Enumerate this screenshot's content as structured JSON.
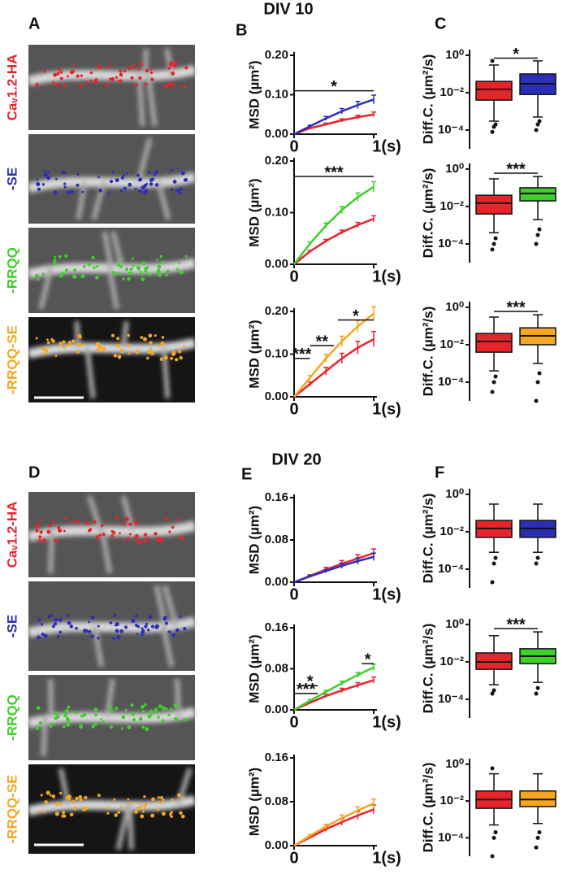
{
  "figure": {
    "titles": [
      "DIV 10",
      "DIV 20"
    ],
    "panel_labels": [
      "A",
      "B",
      "C",
      "D",
      "E",
      "F"
    ],
    "images": [
      {
        "label": "Caᵥ1.2-HA",
        "color": "#e8242a"
      },
      {
        "label": "-SE",
        "color": "#2b2fb8"
      },
      {
        "label": "-RRQQ",
        "color": "#3ecf2b"
      },
      {
        "label": "-RRQQ-SE",
        "color": "#f5a623"
      },
      {
        "label": "Caᵥ1.2-HA",
        "color": "#e8242a"
      },
      {
        "label": "-SE",
        "color": "#2b2fb8"
      },
      {
        "label": "-RRQQ",
        "color": "#3ecf2b"
      },
      {
        "label": "-RRQQ-SE",
        "color": "#f5a623"
      }
    ]
  },
  "chart_data": [
    {
      "type": "line",
      "ylabel": "MSD (µm²)",
      "x": [
        0,
        0.2,
        0.4,
        0.6,
        0.8,
        1
      ],
      "xlim": [
        0,
        1
      ],
      "xticks": [
        0,
        {
          "value": 1,
          "label": "1(s)"
        }
      ],
      "ylim": [
        0,
        0.2
      ],
      "yticks": [
        {
          "value": 0,
          "label": "0.00"
        },
        {
          "value": 0.1,
          "label": "0.10"
        },
        {
          "value": 0.2,
          "label": "0.20"
        }
      ],
      "series": [
        {
          "color": "#e8242a",
          "values": [
            0,
            0.015,
            0.025,
            0.035,
            0.043,
            0.05
          ],
          "errors": [
            0,
            0.002,
            0.003,
            0.004,
            0.005,
            0.006
          ]
        },
        {
          "color": "#2b2fb8",
          "values": [
            0,
            0.02,
            0.04,
            0.058,
            0.074,
            0.088
          ],
          "errors": [
            0,
            0.003,
            0.005,
            0.007,
            0.009,
            0.011
          ]
        }
      ],
      "annotations": [
        {
          "text": "*",
          "y": 0.11,
          "x": [
            0,
            1
          ]
        }
      ]
    },
    {
      "type": "line",
      "ylabel": "MSD (µm²)",
      "x": [
        0,
        0.2,
        0.4,
        0.6,
        0.8,
        1
      ],
      "xlim": [
        0,
        1
      ],
      "xticks": [
        0,
        {
          "value": 1,
          "label": "1(s)"
        }
      ],
      "ylim": [
        0,
        0.2
      ],
      "yticks": [
        {
          "value": 0,
          "label": "0.00"
        },
        {
          "value": 0.1,
          "label": "0.10"
        },
        {
          "value": 0.2,
          "label": "0.20"
        }
      ],
      "series": [
        {
          "color": "#e8242a",
          "values": [
            0,
            0.025,
            0.045,
            0.062,
            0.076,
            0.088
          ],
          "errors": [
            0,
            0.002,
            0.003,
            0.004,
            0.005,
            0.006
          ]
        },
        {
          "color": "#3ecf2b",
          "values": [
            0,
            0.04,
            0.075,
            0.105,
            0.13,
            0.15
          ],
          "errors": [
            0,
            0.003,
            0.005,
            0.007,
            0.008,
            0.01
          ]
        }
      ],
      "annotations": [
        {
          "text": "***",
          "y": 0.17,
          "x": [
            0,
            1
          ]
        }
      ]
    },
    {
      "type": "line",
      "ylabel": "MSD (µm²)",
      "x": [
        0,
        0.2,
        0.4,
        0.6,
        0.8,
        1
      ],
      "xlim": [
        0,
        1
      ],
      "xticks": [
        0,
        {
          "value": 1,
          "label": "1(s)"
        }
      ],
      "ylim": [
        0,
        0.2
      ],
      "yticks": [
        {
          "value": 0,
          "label": "0.00"
        },
        {
          "value": 0.1,
          "label": "0.10"
        },
        {
          "value": 0.2,
          "label": "0.20"
        }
      ],
      "series": [
        {
          "color": "#e8242a",
          "values": [
            0,
            0.03,
            0.06,
            0.09,
            0.115,
            0.135
          ],
          "errors": [
            0,
            0.005,
            0.009,
            0.012,
            0.015,
            0.018
          ]
        },
        {
          "color": "#f5a623",
          "values": [
            0,
            0.045,
            0.09,
            0.13,
            0.165,
            0.195
          ],
          "errors": [
            0,
            0.005,
            0.009,
            0.012,
            0.014,
            0.016
          ]
        }
      ],
      "annotations": [
        {
          "text": "***",
          "y": 0.09,
          "x": [
            0,
            0.2
          ]
        },
        {
          "text": "**",
          "y": 0.12,
          "x": [
            0.2,
            0.5
          ]
        },
        {
          "text": "*",
          "y": 0.18,
          "x": [
            0.55,
            1
          ]
        }
      ]
    },
    {
      "type": "line",
      "ylabel": "MSD (µm²)",
      "x": [
        0,
        0.2,
        0.4,
        0.6,
        0.8,
        1
      ],
      "xlim": [
        0,
        1
      ],
      "xticks": [
        0,
        {
          "value": 1,
          "label": "1(s)"
        }
      ],
      "ylim": [
        0,
        0.16
      ],
      "yticks": [
        {
          "value": 0,
          "label": "0.00"
        },
        {
          "value": 0.08,
          "label": "0.08"
        },
        {
          "value": 0.16,
          "label": "0.16"
        }
      ],
      "series": [
        {
          "color": "#e8242a",
          "values": [
            0,
            0.012,
            0.024,
            0.035,
            0.045,
            0.055
          ],
          "errors": [
            0,
            0.002,
            0.004,
            0.006,
            0.007,
            0.008
          ]
        },
        {
          "color": "#2b2fb8",
          "values": [
            0,
            0.011,
            0.021,
            0.031,
            0.04,
            0.048
          ],
          "errors": [
            0,
            0.002,
            0.003,
            0.005,
            0.006,
            0.007
          ]
        }
      ],
      "annotations": []
    },
    {
      "type": "line",
      "ylabel": "MSD (µm²)",
      "x": [
        0,
        0.2,
        0.4,
        0.6,
        0.8,
        1
      ],
      "xlim": [
        0,
        1
      ],
      "xticks": [
        0,
        {
          "value": 1,
          "label": "1(s)"
        }
      ],
      "ylim": [
        0,
        0.16
      ],
      "yticks": [
        {
          "value": 0,
          "label": "0.00"
        },
        {
          "value": 0.08,
          "label": "0.08"
        },
        {
          "value": 0.16,
          "label": "0.16"
        }
      ],
      "series": [
        {
          "color": "#e8242a",
          "values": [
            0,
            0.014,
            0.027,
            0.038,
            0.048,
            0.058
          ],
          "errors": [
            0,
            0.002,
            0.003,
            0.004,
            0.005,
            0.006
          ]
        },
        {
          "color": "#3ecf2b",
          "values": [
            0,
            0.018,
            0.035,
            0.052,
            0.068,
            0.083
          ],
          "errors": [
            0,
            0.002,
            0.003,
            0.004,
            0.005,
            0.006
          ]
        }
      ],
      "annotations": [
        {
          "text": "***",
          "y": 0.032,
          "x": [
            0,
            0.3
          ]
        },
        {
          "text": "*",
          "y": 0.047,
          "x": [
            0.1,
            0.3
          ]
        },
        {
          "text": "*",
          "y": 0.09,
          "x": [
            0.85,
            1
          ]
        }
      ]
    },
    {
      "type": "line",
      "ylabel": "MSD (µm²)",
      "x": [
        0,
        0.2,
        0.4,
        0.6,
        0.8,
        1
      ],
      "xlim": [
        0,
        1
      ],
      "xticks": [
        0,
        {
          "value": 1,
          "label": "1(s)"
        }
      ],
      "ylim": [
        0,
        0.16
      ],
      "yticks": [
        {
          "value": 0,
          "label": "0.00"
        },
        {
          "value": 0.08,
          "label": "0.08"
        },
        {
          "value": 0.16,
          "label": "0.16"
        }
      ],
      "series": [
        {
          "color": "#e8242a",
          "values": [
            0,
            0.015,
            0.03,
            0.043,
            0.055,
            0.066
          ],
          "errors": [
            0,
            0.002,
            0.004,
            0.006,
            0.007,
            0.008
          ]
        },
        {
          "color": "#f5a623",
          "values": [
            0,
            0.018,
            0.035,
            0.05,
            0.064,
            0.077
          ],
          "errors": [
            0,
            0.002,
            0.004,
            0.006,
            0.007,
            0.008
          ]
        }
      ],
      "annotations": []
    },
    {
      "type": "box",
      "ylabel": "Diff.C. (µm²/s)",
      "log_scale": true,
      "ylim": [
        1e-05,
        2
      ],
      "yticks": [
        {
          "value": 1,
          "label": "10⁰"
        },
        {
          "value": 0.01,
          "label": "10⁻²"
        },
        {
          "value": 0.0001,
          "label": "10⁻⁴"
        }
      ],
      "boxes": [
        {
          "color": "#e8242a",
          "low": 0.0003,
          "q1": 0.004,
          "median": 0.015,
          "q3": 0.04,
          "high": 0.3,
          "outliers": [
            8e-05,
            0.00015,
            0.0002,
            0.5
          ]
        },
        {
          "color": "#2b2fb8",
          "low": 0.0005,
          "q1": 0.008,
          "median": 0.03,
          "q3": 0.1,
          "high": 0.5,
          "outliers": [
            0.0001,
            0.0002,
            0.0003
          ]
        }
      ],
      "annotations": [
        {
          "text": "*",
          "y": 0.7,
          "x": [
            0,
            1
          ]
        }
      ]
    },
    {
      "type": "box",
      "ylabel": "Diff.C. (µm²/s)",
      "log_scale": true,
      "ylim": [
        1e-05,
        2
      ],
      "yticks": [
        {
          "value": 1,
          "label": "10⁰"
        },
        {
          "value": 0.01,
          "label": "10⁻²"
        },
        {
          "value": 0.0001,
          "label": "10⁻⁴"
        }
      ],
      "boxes": [
        {
          "color": "#e8242a",
          "low": 0.0004,
          "q1": 0.004,
          "median": 0.015,
          "q3": 0.04,
          "high": 0.3,
          "outliers": [
            5e-05,
            0.0001,
            0.0002
          ]
        },
        {
          "color": "#3ecf2b",
          "low": 0.002,
          "q1": 0.02,
          "median": 0.05,
          "q3": 0.1,
          "high": 0.4,
          "outliers": [
            0.0001,
            0.0003,
            0.0006
          ]
        }
      ],
      "annotations": [
        {
          "text": "***",
          "y": 0.6,
          "x": [
            0,
            1
          ]
        }
      ]
    },
    {
      "type": "box",
      "ylabel": "Diff.C. (µm²/s)",
      "log_scale": true,
      "ylim": [
        1e-05,
        2
      ],
      "yticks": [
        {
          "value": 1,
          "label": "10⁰"
        },
        {
          "value": 0.01,
          "label": "10⁻²"
        },
        {
          "value": 0.0001,
          "label": "10⁻⁴"
        }
      ],
      "boxes": [
        {
          "color": "#e8242a",
          "low": 0.0004,
          "q1": 0.004,
          "median": 0.015,
          "q3": 0.04,
          "high": 0.3,
          "outliers": [
            3e-05,
            0.0001,
            0.0002
          ]
        },
        {
          "color": "#f5a623",
          "low": 0.001,
          "q1": 0.01,
          "median": 0.03,
          "q3": 0.08,
          "high": 0.4,
          "outliers": [
            1e-05,
            0.0001,
            0.0003
          ]
        }
      ],
      "annotations": [
        {
          "text": "***",
          "y": 0.6,
          "x": [
            0,
            1
          ]
        }
      ]
    },
    {
      "type": "box",
      "ylabel": "Diff.C. (µm²/s)",
      "log_scale": true,
      "ylim": [
        1e-05,
        2
      ],
      "yticks": [
        {
          "value": 1,
          "label": "10⁰"
        },
        {
          "value": 0.01,
          "label": "10⁻²"
        },
        {
          "value": 0.0001,
          "label": "10⁻⁴"
        }
      ],
      "boxes": [
        {
          "color": "#e8242a",
          "low": 0.0008,
          "q1": 0.005,
          "median": 0.015,
          "q3": 0.04,
          "high": 0.3,
          "outliers": [
            2e-05,
            0.0002,
            0.0004
          ]
        },
        {
          "color": "#2b2fb8",
          "low": 0.0008,
          "q1": 0.005,
          "median": 0.015,
          "q3": 0.04,
          "high": 0.3,
          "outliers": [
            0.0002,
            0.0004
          ]
        }
      ],
      "annotations": []
    },
    {
      "type": "box",
      "ylabel": "Diff.C. (µm²/s)",
      "log_scale": true,
      "ylim": [
        1e-05,
        2
      ],
      "yticks": [
        {
          "value": 1,
          "label": "10⁰"
        },
        {
          "value": 0.01,
          "label": "10⁻²"
        },
        {
          "value": 0.0001,
          "label": "10⁻⁴"
        }
      ],
      "boxes": [
        {
          "color": "#e8242a",
          "low": 0.0006,
          "q1": 0.004,
          "median": 0.01,
          "q3": 0.03,
          "high": 0.25,
          "outliers": [
            0.0002,
            0.0003
          ]
        },
        {
          "color": "#3ecf2b",
          "low": 0.0008,
          "q1": 0.008,
          "median": 0.02,
          "q3": 0.05,
          "high": 0.4,
          "outliers": [
            0.0002,
            0.0004
          ]
        }
      ],
      "annotations": [
        {
          "text": "***",
          "y": 0.6,
          "x": [
            0,
            1
          ]
        }
      ]
    },
    {
      "type": "box",
      "ylabel": "Diff.C. (µm²/s)",
      "log_scale": true,
      "ylim": [
        1e-05,
        2
      ],
      "yticks": [
        {
          "value": 1,
          "label": "10⁰"
        },
        {
          "value": 0.01,
          "label": "10⁻²"
        },
        {
          "value": 0.0001,
          "label": "10⁻⁴"
        }
      ],
      "boxes": [
        {
          "color": "#e8242a",
          "low": 0.0005,
          "q1": 0.004,
          "median": 0.012,
          "q3": 0.035,
          "high": 0.3,
          "outliers": [
            1e-05,
            0.0001,
            0.0002,
            0.6
          ]
        },
        {
          "color": "#f5a623",
          "low": 0.0006,
          "q1": 0.005,
          "median": 0.012,
          "q3": 0.035,
          "high": 0.3,
          "outliers": [
            3e-05,
            0.0001,
            0.0002
          ]
        }
      ],
      "annotations": []
    }
  ]
}
